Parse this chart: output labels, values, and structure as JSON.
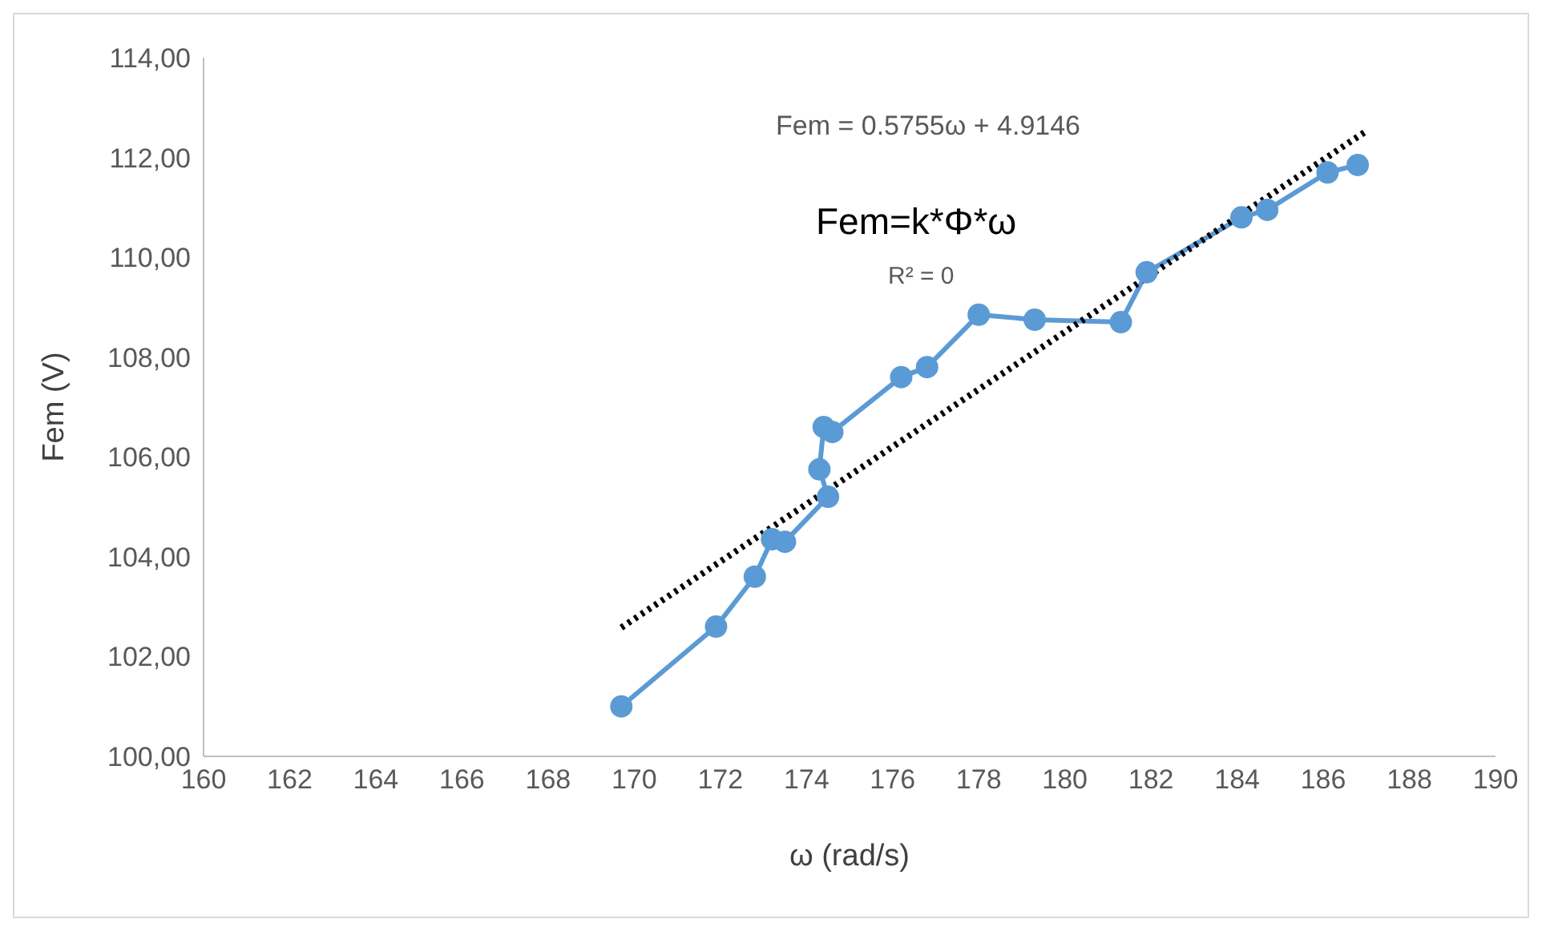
{
  "chart_data": {
    "type": "line",
    "xlabel": "ω (rad/s)",
    "ylabel": "Fem (V)",
    "xlim": [
      160,
      190
    ],
    "xticks": [
      160,
      162,
      164,
      166,
      168,
      170,
      172,
      174,
      176,
      178,
      180,
      182,
      184,
      186,
      188,
      190
    ],
    "ylim": [
      100,
      114
    ],
    "yticks": [
      {
        "value": 100,
        "label": "100,00"
      },
      {
        "value": 102,
        "label": "102,00"
      },
      {
        "value": 104,
        "label": "104,00"
      },
      {
        "value": 106,
        "label": "106,00"
      },
      {
        "value": 108,
        "label": "108,00"
      },
      {
        "value": 110,
        "label": "110,00"
      },
      {
        "value": 112,
        "label": "112,00"
      },
      {
        "value": 114,
        "label": "114,00"
      }
    ],
    "grid": false,
    "legend": false,
    "series": [
      {
        "color": "#5b9bd5",
        "marker": "circle",
        "line_style": "solid",
        "x": [
          169.7,
          171.9,
          172.8,
          173.2,
          173.5,
          174.5,
          174.3,
          174.4,
          174.6,
          176.2,
          176.8,
          178.0,
          179.3,
          181.3,
          181.9,
          184.1,
          184.7,
          186.1,
          186.8
        ],
        "values": [
          101.0,
          102.6,
          103.6,
          104.35,
          104.3,
          105.2,
          105.75,
          106.6,
          106.5,
          107.6,
          107.8,
          108.85,
          108.75,
          108.7,
          109.7,
          110.8,
          110.95,
          111.7,
          111.85
        ]
      },
      {
        "color": "#000000",
        "marker": "none",
        "line_style": "dotted",
        "x": [
          169.7,
          187.0
        ],
        "values": [
          102.58,
          112.53
        ]
      }
    ],
    "annotations": [
      "Fem = 0.5755ω + 4.9146",
      "R² = 0",
      "Fem=k*Φ*ω"
    ]
  }
}
